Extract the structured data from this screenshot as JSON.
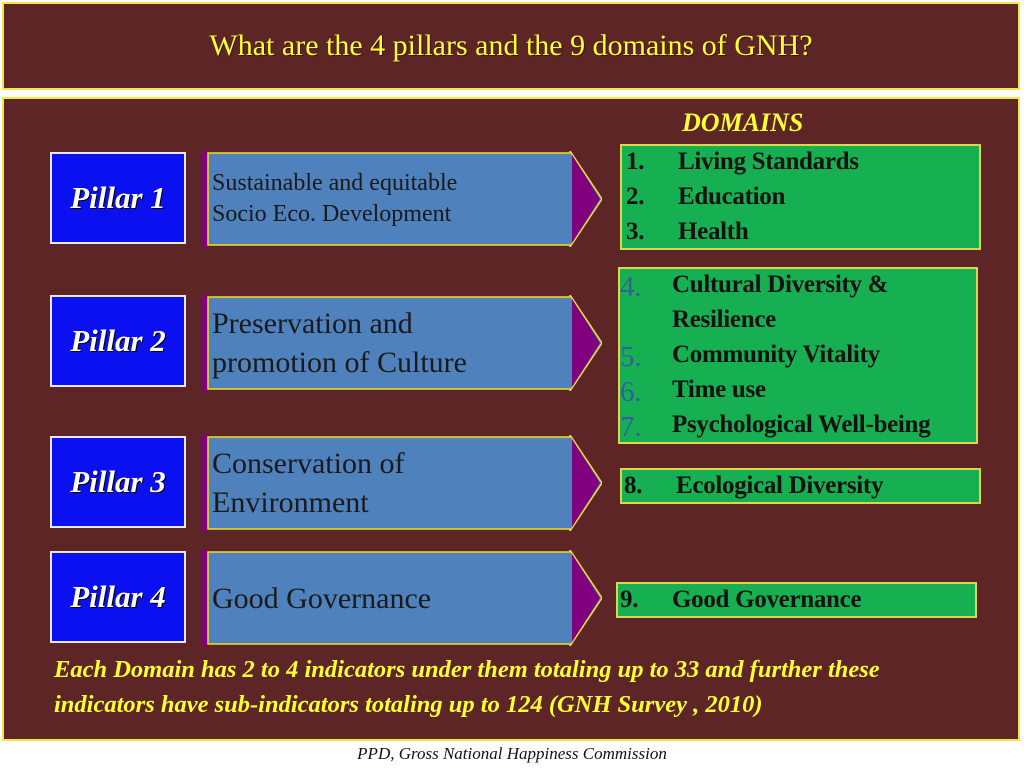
{
  "title": "What are the 4 pillars and the 9 domains of GNH?",
  "domains_heading": "DOMAINS",
  "colors": {
    "background": "#5e2526",
    "accent_yellow": "#ffff33",
    "pillar_blue": "#0a10f0",
    "arrow_blue": "#4f81bd",
    "arrow_purple": "#80007f",
    "domain_green": "#16b052"
  },
  "pillars": [
    {
      "label": "Pillar 1",
      "text_line1": "Sustainable and equitable",
      "text_line2": "Socio Eco. Development"
    },
    {
      "label": "Pillar 2",
      "text_line1": "Preservation and",
      "text_line2": "promotion of Culture"
    },
    {
      "label": "Pillar 3",
      "text_line1": "Conservation of",
      "text_line2": "Environment"
    },
    {
      "label": "Pillar 4",
      "text_line1": "Good Governance",
      "text_line2": ""
    }
  ],
  "domains": [
    {
      "num": "1.",
      "name": "Living Standards"
    },
    {
      "num": "2.",
      "name": "Education"
    },
    {
      "num": "3.",
      "name": "Health"
    },
    {
      "num": "4.",
      "name": "Cultural Diversity &",
      "name_cont": "Resilience"
    },
    {
      "num": "5.",
      "name": "Community Vitality"
    },
    {
      "num": "6.",
      "name": "Time use"
    },
    {
      "num": "7.",
      "name": "Psychological Well-being"
    },
    {
      "num": "8.",
      "name": "Ecological Diversity"
    },
    {
      "num": "9.",
      "name": "Good Governance"
    }
  ],
  "footnote_line1": "Each Domain has 2 to 4 indicators under them totaling up to 33 and further these",
  "footnote_line2": "indicators have sub-indicators totaling up to 124 (GNH Survey , 2010)",
  "credit": "PPD, Gross National Happiness Commission"
}
